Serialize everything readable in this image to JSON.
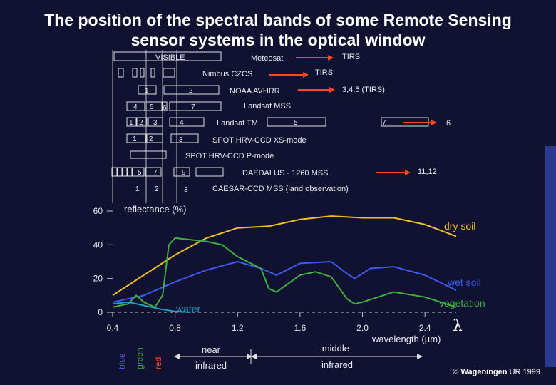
{
  "title": {
    "line1": "The position of the spectral bands of some Remote Sensing",
    "line2": "sensor systems in the optical window"
  },
  "sensors": {
    "visible": "VISIBLE",
    "meteosat": "Meteosat",
    "meteosat_tirs": "TIRS",
    "nimbus": "Nimbus CZCS",
    "nimbus_tirs": "TIRS",
    "noaa": "NOAA AVHRR",
    "noaa_b1": "1",
    "noaa_b2": "2",
    "noaa_tirs": "3,4,5 (TIRS)",
    "mss": "Landsat MSS",
    "mss_b4": "4",
    "mss_b5": "5",
    "mss_b6": "6",
    "mss_b7": "7",
    "tm": "Landsat TM",
    "tm_b1": "1",
    "tm_b2": "2",
    "tm_b3": "3",
    "tm_b4": "4",
    "tm_b5": "5",
    "tm_b7": "7",
    "tm_b6": "6",
    "spot_xs": "SPOT HRV-CCD XS-mode",
    "spot_xs_b1": "1",
    "spot_xs_b2": "2",
    "spot_xs_b3": "3",
    "spot_p": "SPOT HRV-CCD P-mode",
    "daedalus": "DAEDALUS - 1260 MSS",
    "daedalus_b5": "5",
    "daedalus_b7": "7",
    "daedalus_b9": "9",
    "daedalus_tirs": "11,12",
    "caesar": "CAESAR-CCD MSS (land observation)",
    "caesar_b1": "1",
    "caesar_b2": "2",
    "caesar_b3": "3"
  },
  "chart": {
    "ylabel": "reflectance (%)",
    "xlabel": "wavelength (µm)",
    "lambda": "λ",
    "curve_labels": {
      "dry_soil": "dry soil",
      "wet_soil": "wet soil",
      "vegetation": "vegetation",
      "water": "water"
    },
    "regions": {
      "blue": "blue",
      "green": "green",
      "red": "red",
      "near1": "near",
      "near2": "infrared",
      "mid1": "middle-",
      "mid2": "infrared"
    }
  },
  "copyright": {
    "symbol": "©",
    "org": "Wageningen",
    "rest": "UR 1999"
  },
  "chart_data": {
    "type": "line",
    "x_range": [
      0.4,
      2.6
    ],
    "y_range": [
      0,
      60
    ],
    "x_ticks": [
      "0.4",
      "0.8",
      "1.2",
      "1.6",
      "2.0",
      "2.4"
    ],
    "y_ticks": [
      "0",
      "20",
      "40",
      "60"
    ],
    "colors": {
      "dry_soil": "#f0c020",
      "wet_soil": "#3a5cf0",
      "vegetation": "#40b040",
      "water": "#20a0c0"
    },
    "series": [
      {
        "name": "dry soil",
        "key": "dry_soil",
        "x": [
          0.4,
          0.6,
          0.8,
          1.0,
          1.2,
          1.4,
          1.6,
          1.8,
          2.0,
          2.2,
          2.4,
          2.6
        ],
        "y": [
          10,
          22,
          34,
          44,
          50,
          51,
          55,
          57,
          56,
          56,
          52,
          45
        ]
      },
      {
        "name": "wet soil",
        "key": "wet_soil",
        "x": [
          0.4,
          0.6,
          0.8,
          1.0,
          1.2,
          1.35,
          1.45,
          1.6,
          1.8,
          1.9,
          1.95,
          2.05,
          2.2,
          2.4,
          2.6
        ],
        "y": [
          6,
          10,
          18,
          25,
          30,
          26,
          22,
          29,
          30,
          23,
          20,
          26,
          27,
          22,
          13
        ]
      },
      {
        "name": "vegetation",
        "key": "vegetation",
        "x": [
          0.4,
          0.5,
          0.55,
          0.6,
          0.67,
          0.72,
          0.76,
          0.8,
          1.0,
          1.1,
          1.2,
          1.35,
          1.4,
          1.45,
          1.6,
          1.7,
          1.8,
          1.9,
          1.95,
          2.0,
          2.2,
          2.4,
          2.6
        ],
        "y": [
          3,
          5,
          10,
          6,
          3,
          10,
          40,
          44,
          42,
          40,
          33,
          26,
          14,
          12,
          22,
          24,
          21,
          8,
          5,
          6,
          12,
          9,
          3
        ]
      },
      {
        "name": "water",
        "key": "water",
        "x": [
          0.4,
          0.5,
          0.6,
          0.7,
          0.8,
          0.9
        ],
        "y": [
          5,
          6,
          4,
          2,
          0.5,
          0
        ]
      }
    ]
  }
}
